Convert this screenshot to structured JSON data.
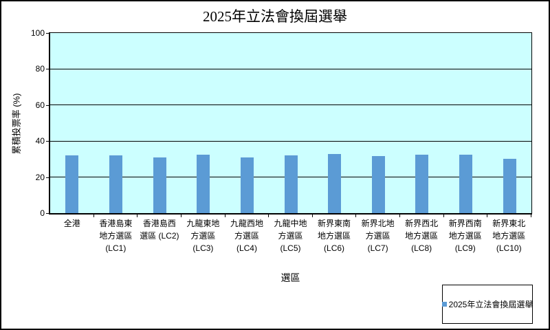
{
  "title": "2025年立法會換屆選舉",
  "chart_data": {
    "type": "bar",
    "title": "2025年立法會換屆選舉",
    "xlabel": "選區",
    "ylabel": "累積投票率 (%)",
    "ylim": [
      0,
      100
    ],
    "yticks": [
      0,
      20,
      40,
      60,
      80,
      100
    ],
    "grid": true,
    "legend_position": "bottom-right",
    "legend_entries": [
      "2025年立法會換屆選舉"
    ],
    "categories": [
      "全港",
      "香港島東地方選區 (LC1)",
      "香港島西選區 (LC2)",
      "九龍東地方選區 (LC3)",
      "九龍西地方選區 (LC4)",
      "九龍中地方選區 (LC5)",
      "新界東南地方選區 (LC6)",
      "新界北地方選區 (LC7)",
      "新界西北地方選區 (LC8)",
      "新界西南地方選區 (LC9)",
      "新界東北地方選區 (LC10)"
    ],
    "category_lines": [
      [
        "全港"
      ],
      [
        "香港島東",
        "地方選區",
        "(LC1)"
      ],
      [
        "香港島西",
        "選區 (LC2)"
      ],
      [
        "九龍東地",
        "方選區",
        "(LC3)"
      ],
      [
        "九龍西地",
        "方選區",
        "(LC4)"
      ],
      [
        "九龍中地",
        "方選區",
        "(LC5)"
      ],
      [
        "新界東南",
        "地方選區",
        "(LC6)"
      ],
      [
        "新界北地",
        "方選區",
        "(LC7)"
      ],
      [
        "新界西北",
        "地方選區",
        "(LC8)"
      ],
      [
        "新界西南",
        "地方選區",
        "(LC9)"
      ],
      [
        "新界東北",
        "地方選區",
        "(LC10)"
      ]
    ],
    "values": [
      31.9,
      32.1,
      31.1,
      32.5,
      31.1,
      32.0,
      32.7,
      31.6,
      32.5,
      32.5,
      30.2
    ],
    "colors": {
      "bar": "#5B9BD5",
      "plot_background": "#CCFFFF",
      "axis_line": "#000000",
      "chart_background": "#FFFFFF"
    }
  }
}
